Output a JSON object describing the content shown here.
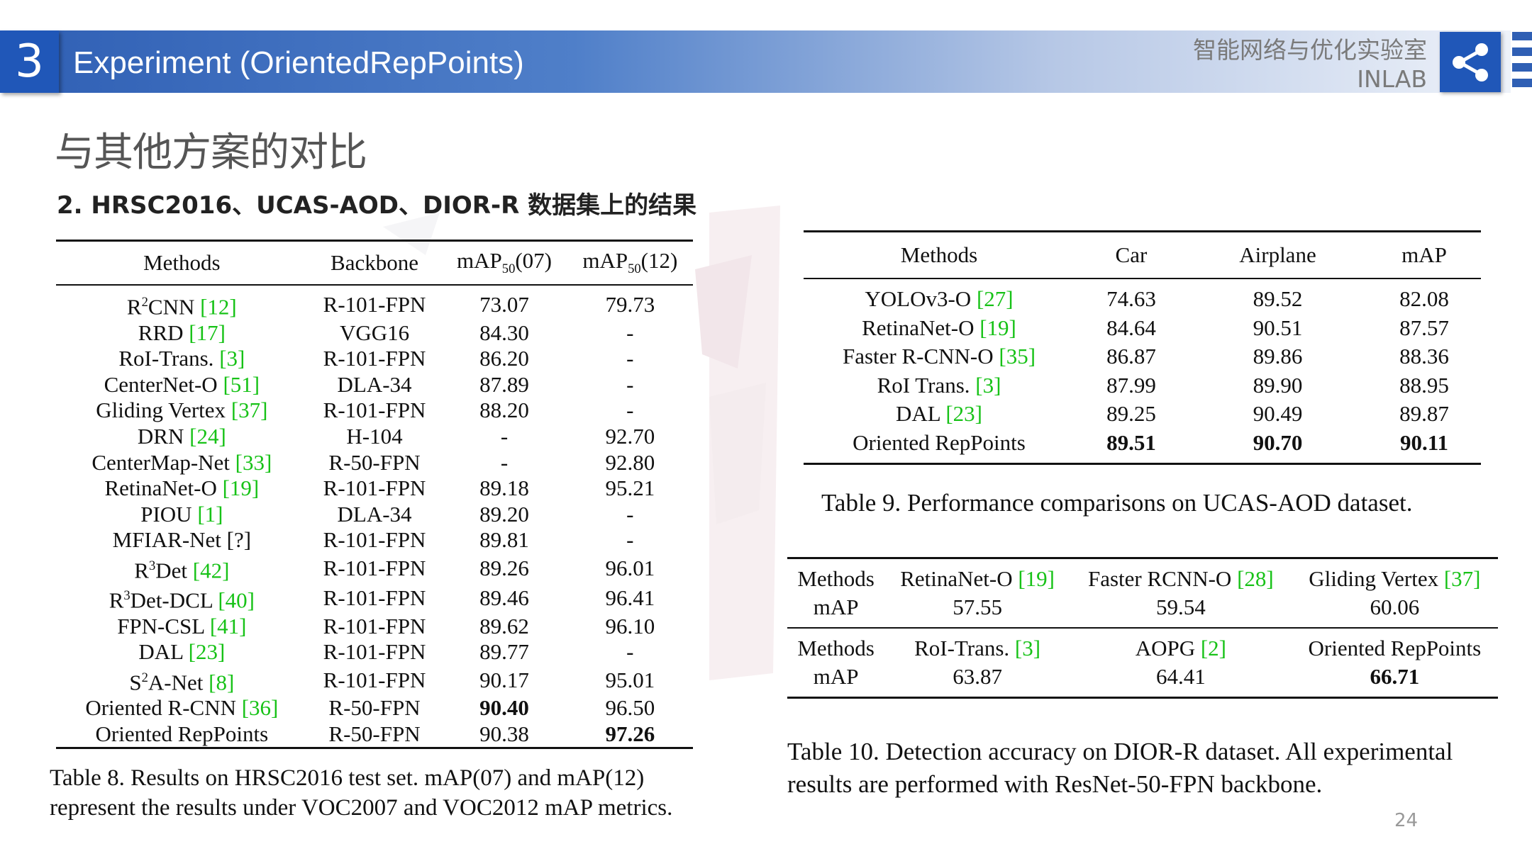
{
  "header": {
    "section_number": "3",
    "title": "Experiment (OrientedRepPoints)",
    "lab_name": "智能网络与优化实验室",
    "lab_abbr": "INLAB"
  },
  "slide": {
    "subtitle": "与其他方案的对比",
    "subheading": "2. HRSC2016、UCAS-AOD、DIOR-R 数据集上的结果",
    "page_number": "24"
  },
  "colors": {
    "header_blue": "#2057b8",
    "ref_green": "#17c217"
  },
  "icons": {
    "share": "share-icon"
  },
  "table8": {
    "headers": {
      "methods": "Methods",
      "backbone": "Backbone",
      "map07": "mAP₅₀(07)",
      "map12": "mAP₅₀(12)"
    },
    "rows": [
      {
        "pre": "R",
        "sup": "2",
        "name": "CNN ",
        "ref": "[12]",
        "backbone": "R-101-FPN",
        "map07": "73.07",
        "map12": "79.73"
      },
      {
        "pre": "",
        "sup": "",
        "name": "RRD ",
        "ref": "[17]",
        "backbone": "VGG16",
        "map07": "84.30",
        "map12": "-"
      },
      {
        "pre": "",
        "sup": "",
        "name": "RoI-Trans. ",
        "ref": "[3]",
        "backbone": "R-101-FPN",
        "map07": "86.20",
        "map12": "-"
      },
      {
        "pre": "",
        "sup": "",
        "name": "CenterNet-O ",
        "ref": "[51]",
        "backbone": "DLA-34",
        "map07": "87.89",
        "map12": "-"
      },
      {
        "pre": "",
        "sup": "",
        "name": "Gliding Vertex ",
        "ref": "[37]",
        "backbone": "R-101-FPN",
        "map07": "88.20",
        "map12": "-"
      },
      {
        "pre": "",
        "sup": "",
        "name": "DRN ",
        "ref": "[24]",
        "backbone": "H-104",
        "map07": "-",
        "map12": "92.70"
      },
      {
        "pre": "",
        "sup": "",
        "name": "CenterMap-Net ",
        "ref": "[33]",
        "backbone": "R-50-FPN",
        "map07": "-",
        "map12": "92.80"
      },
      {
        "pre": "",
        "sup": "",
        "name": "RetinaNet-O ",
        "ref": "[19]",
        "backbone": "R-101-FPN",
        "map07": "89.18",
        "map12": "95.21"
      },
      {
        "pre": "",
        "sup": "",
        "name": "PIOU ",
        "ref": "[1]",
        "backbone": "DLA-34",
        "map07": "89.20",
        "map12": "-"
      },
      {
        "pre": "",
        "sup": "",
        "name": "MFIAR-Net [?]",
        "ref": "",
        "backbone": "R-101-FPN",
        "map07": "89.81",
        "map12": "-"
      },
      {
        "pre": "R",
        "sup": "3",
        "name": "Det ",
        "ref": "[42]",
        "backbone": "R-101-FPN",
        "map07": "89.26",
        "map12": "96.01"
      },
      {
        "pre": "R",
        "sup": "3",
        "name": "Det-DCL ",
        "ref": "[40]",
        "backbone": "R-101-FPN",
        "map07": "89.46",
        "map12": "96.41"
      },
      {
        "pre": "",
        "sup": "",
        "name": "FPN-CSL ",
        "ref": "[41]",
        "backbone": "R-101-FPN",
        "map07": "89.62",
        "map12": "96.10"
      },
      {
        "pre": "",
        "sup": "",
        "name": "DAL ",
        "ref": "[23]",
        "backbone": "R-101-FPN",
        "map07": "89.77",
        "map12": "-"
      },
      {
        "pre": "S",
        "sup": "2",
        "name": "A-Net ",
        "ref": "[8]",
        "backbone": "R-101-FPN",
        "map07": "90.17",
        "map12": "95.01"
      },
      {
        "pre": "",
        "sup": "",
        "name": "Oriented R-CNN ",
        "ref": "[36]",
        "backbone": "R-50-FPN",
        "map07": "90.40",
        "map12": "96.50",
        "bold07": true
      },
      {
        "pre": "",
        "sup": "",
        "name": "Oriented RepPoints",
        "ref": "",
        "backbone": "R-50-FPN",
        "map07": "90.38",
        "map12": "97.26",
        "bold12": true
      }
    ],
    "caption": "Table 8. Results on HRSC2016 test set. mAP(07) and mAP(12) represent the results under VOC2007 and VOC2012 mAP metrics."
  },
  "table9": {
    "headers": [
      "Methods",
      "Car",
      "Airplane",
      "mAP"
    ],
    "rows": [
      {
        "name": "YOLOv3-O ",
        "ref": "[27]",
        "car": "74.63",
        "airplane": "89.52",
        "map": "82.08"
      },
      {
        "name": "RetinaNet-O ",
        "ref": "[19]",
        "car": "84.64",
        "airplane": "90.51",
        "map": "87.57"
      },
      {
        "name": "Faster R-CNN-O ",
        "ref": "[35]",
        "car": "86.87",
        "airplane": "89.86",
        "map": "88.36"
      },
      {
        "name": "RoI Trans. ",
        "ref": "[3]",
        "car": "87.99",
        "airplane": "89.90",
        "map": "88.95"
      },
      {
        "name": "DAL ",
        "ref": "[23]",
        "car": "89.25",
        "airplane": "90.49",
        "map": "89.87"
      },
      {
        "name": "Oriented RepPoints",
        "ref": "",
        "car": "89.51",
        "airplane": "90.70",
        "map": "90.11",
        "bold": true
      }
    ],
    "caption": "Table 9. Performance comparisons on UCAS-AOD dataset."
  },
  "table10": {
    "label_methods": "Methods",
    "label_map": "mAP",
    "block1": [
      {
        "name": "RetinaNet-O ",
        "ref": "[19]",
        "map": "57.55"
      },
      {
        "name": "Faster RCNN-O ",
        "ref": "[28]",
        "map": "59.54"
      },
      {
        "name": "Gliding Vertex ",
        "ref": "[37]",
        "map": "60.06"
      }
    ],
    "block2": [
      {
        "name": "RoI-Trans. ",
        "ref": "[3]",
        "map": "63.87"
      },
      {
        "name": "AOPG ",
        "ref": "[2]",
        "map": "64.41"
      },
      {
        "name": "Oriented RepPoints",
        "ref": "",
        "map": "66.71",
        "bold": true
      }
    ],
    "caption": "Table 10. Detection accuracy on DIOR-R dataset. All experimental results are performed with ResNet-50-FPN backbone."
  }
}
